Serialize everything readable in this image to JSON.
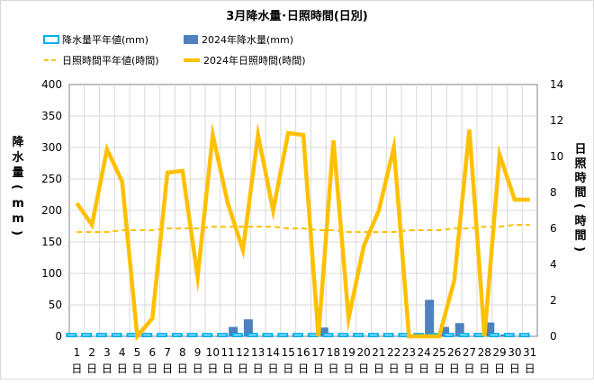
{
  "chart_data": {
    "type": "bar+line",
    "title": "3月降水量･日照時間(日別)",
    "ylabel_left": "降水量(mm)",
    "ylabel_right": "日照時間(時間)",
    "ylim_left": [
      0,
      400
    ],
    "yticks_left": [
      "0",
      "50",
      "100",
      "150",
      "200",
      "250",
      "300",
      "350",
      "400"
    ],
    "ylim_right": [
      0,
      14
    ],
    "yticks_right": [
      "0",
      "2",
      "4",
      "6",
      "8",
      "10",
      "12",
      "14"
    ],
    "categories": [
      "1",
      "2",
      "3",
      "4",
      "5",
      "6",
      "7",
      "8",
      "9",
      "10",
      "11",
      "12",
      "13",
      "14",
      "15",
      "16",
      "17",
      "18",
      "19",
      "20",
      "21",
      "22",
      "23",
      "24",
      "25",
      "26",
      "27",
      "28",
      "29",
      "30",
      "31"
    ],
    "day_unit": "日",
    "grid": true,
    "legend_position": "top",
    "series": [
      {
        "name": "降水量平年値(mm)",
        "type": "bar",
        "axis": "left",
        "color": "#00b0f0",
        "values": [
          4.0,
          4.0,
          4.0,
          4.0,
          4.0,
          4.0,
          4.0,
          4.0,
          4.0,
          4.0,
          4.0,
          4.0,
          4.0,
          4.0,
          4.0,
          4.0,
          4.0,
          4.0,
          4.0,
          4.0,
          4.0,
          4.0,
          4.0,
          4.0,
          4.0,
          4.0,
          4.0,
          4.0,
          4.0,
          4.0,
          4.0
        ]
      },
      {
        "name": "2024年降水量(mm)",
        "type": "bar",
        "axis": "left",
        "color": "#4f81bd",
        "values": [
          0,
          0,
          0,
          0,
          0,
          0,
          0,
          0,
          0,
          0,
          15.0,
          27.0,
          0,
          0,
          0,
          0,
          14.0,
          0,
          0.5,
          0,
          0,
          0,
          0,
          58.0,
          15.0,
          21.0,
          0,
          22.0,
          3.0,
          0,
          0
        ]
      },
      {
        "name": "日照時間平年値(時間)",
        "type": "line",
        "style": "dashed",
        "axis": "right",
        "color": "#ffc000",
        "values": [
          5.8,
          5.8,
          5.8,
          5.9,
          5.9,
          5.9,
          6.0,
          6.0,
          6.0,
          6.1,
          6.1,
          6.1,
          6.1,
          6.1,
          6.0,
          6.0,
          5.9,
          5.9,
          5.8,
          5.8,
          5.8,
          5.8,
          5.9,
          5.9,
          5.9,
          6.0,
          6.0,
          6.1,
          6.1,
          6.2,
          6.2
        ]
      },
      {
        "name": "2024年日照時間(時間)",
        "type": "line",
        "style": "solid",
        "axis": "right",
        "color": "#ffc000",
        "values": [
          7.4,
          6.2,
          10.4,
          8.6,
          0.0,
          1.0,
          9.1,
          9.2,
          3.3,
          11.2,
          7.4,
          4.8,
          11.2,
          7.0,
          11.3,
          11.2,
          0.0,
          10.9,
          1.0,
          5.0,
          7.0,
          10.5,
          0.0,
          0.0,
          0.0,
          3.1,
          11.5,
          0.0,
          10.1,
          7.6,
          7.6
        ]
      }
    ]
  }
}
